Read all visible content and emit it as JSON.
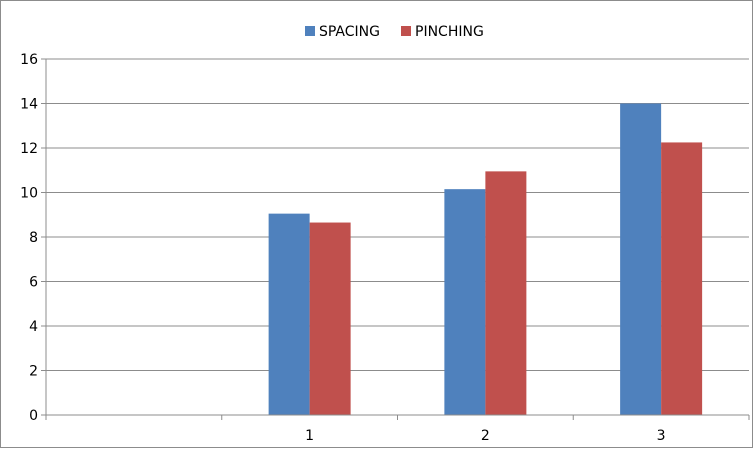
{
  "chart_data": {
    "type": "bar",
    "categories": [
      "",
      "1",
      "2",
      "3"
    ],
    "series": [
      {
        "name": "SPACING",
        "values": [
          null,
          9.05,
          10.15,
          14.0
        ],
        "color": "#4f81bd"
      },
      {
        "name": "PINCHING",
        "values": [
          null,
          8.65,
          10.95,
          12.25
        ],
        "color": "#c0504d"
      }
    ],
    "ylim": [
      0,
      16
    ],
    "yticks": [
      "0",
      "2",
      "4",
      "6",
      "8",
      "10",
      "12",
      "14",
      "16"
    ],
    "grid": true,
    "legend_position": "top"
  }
}
